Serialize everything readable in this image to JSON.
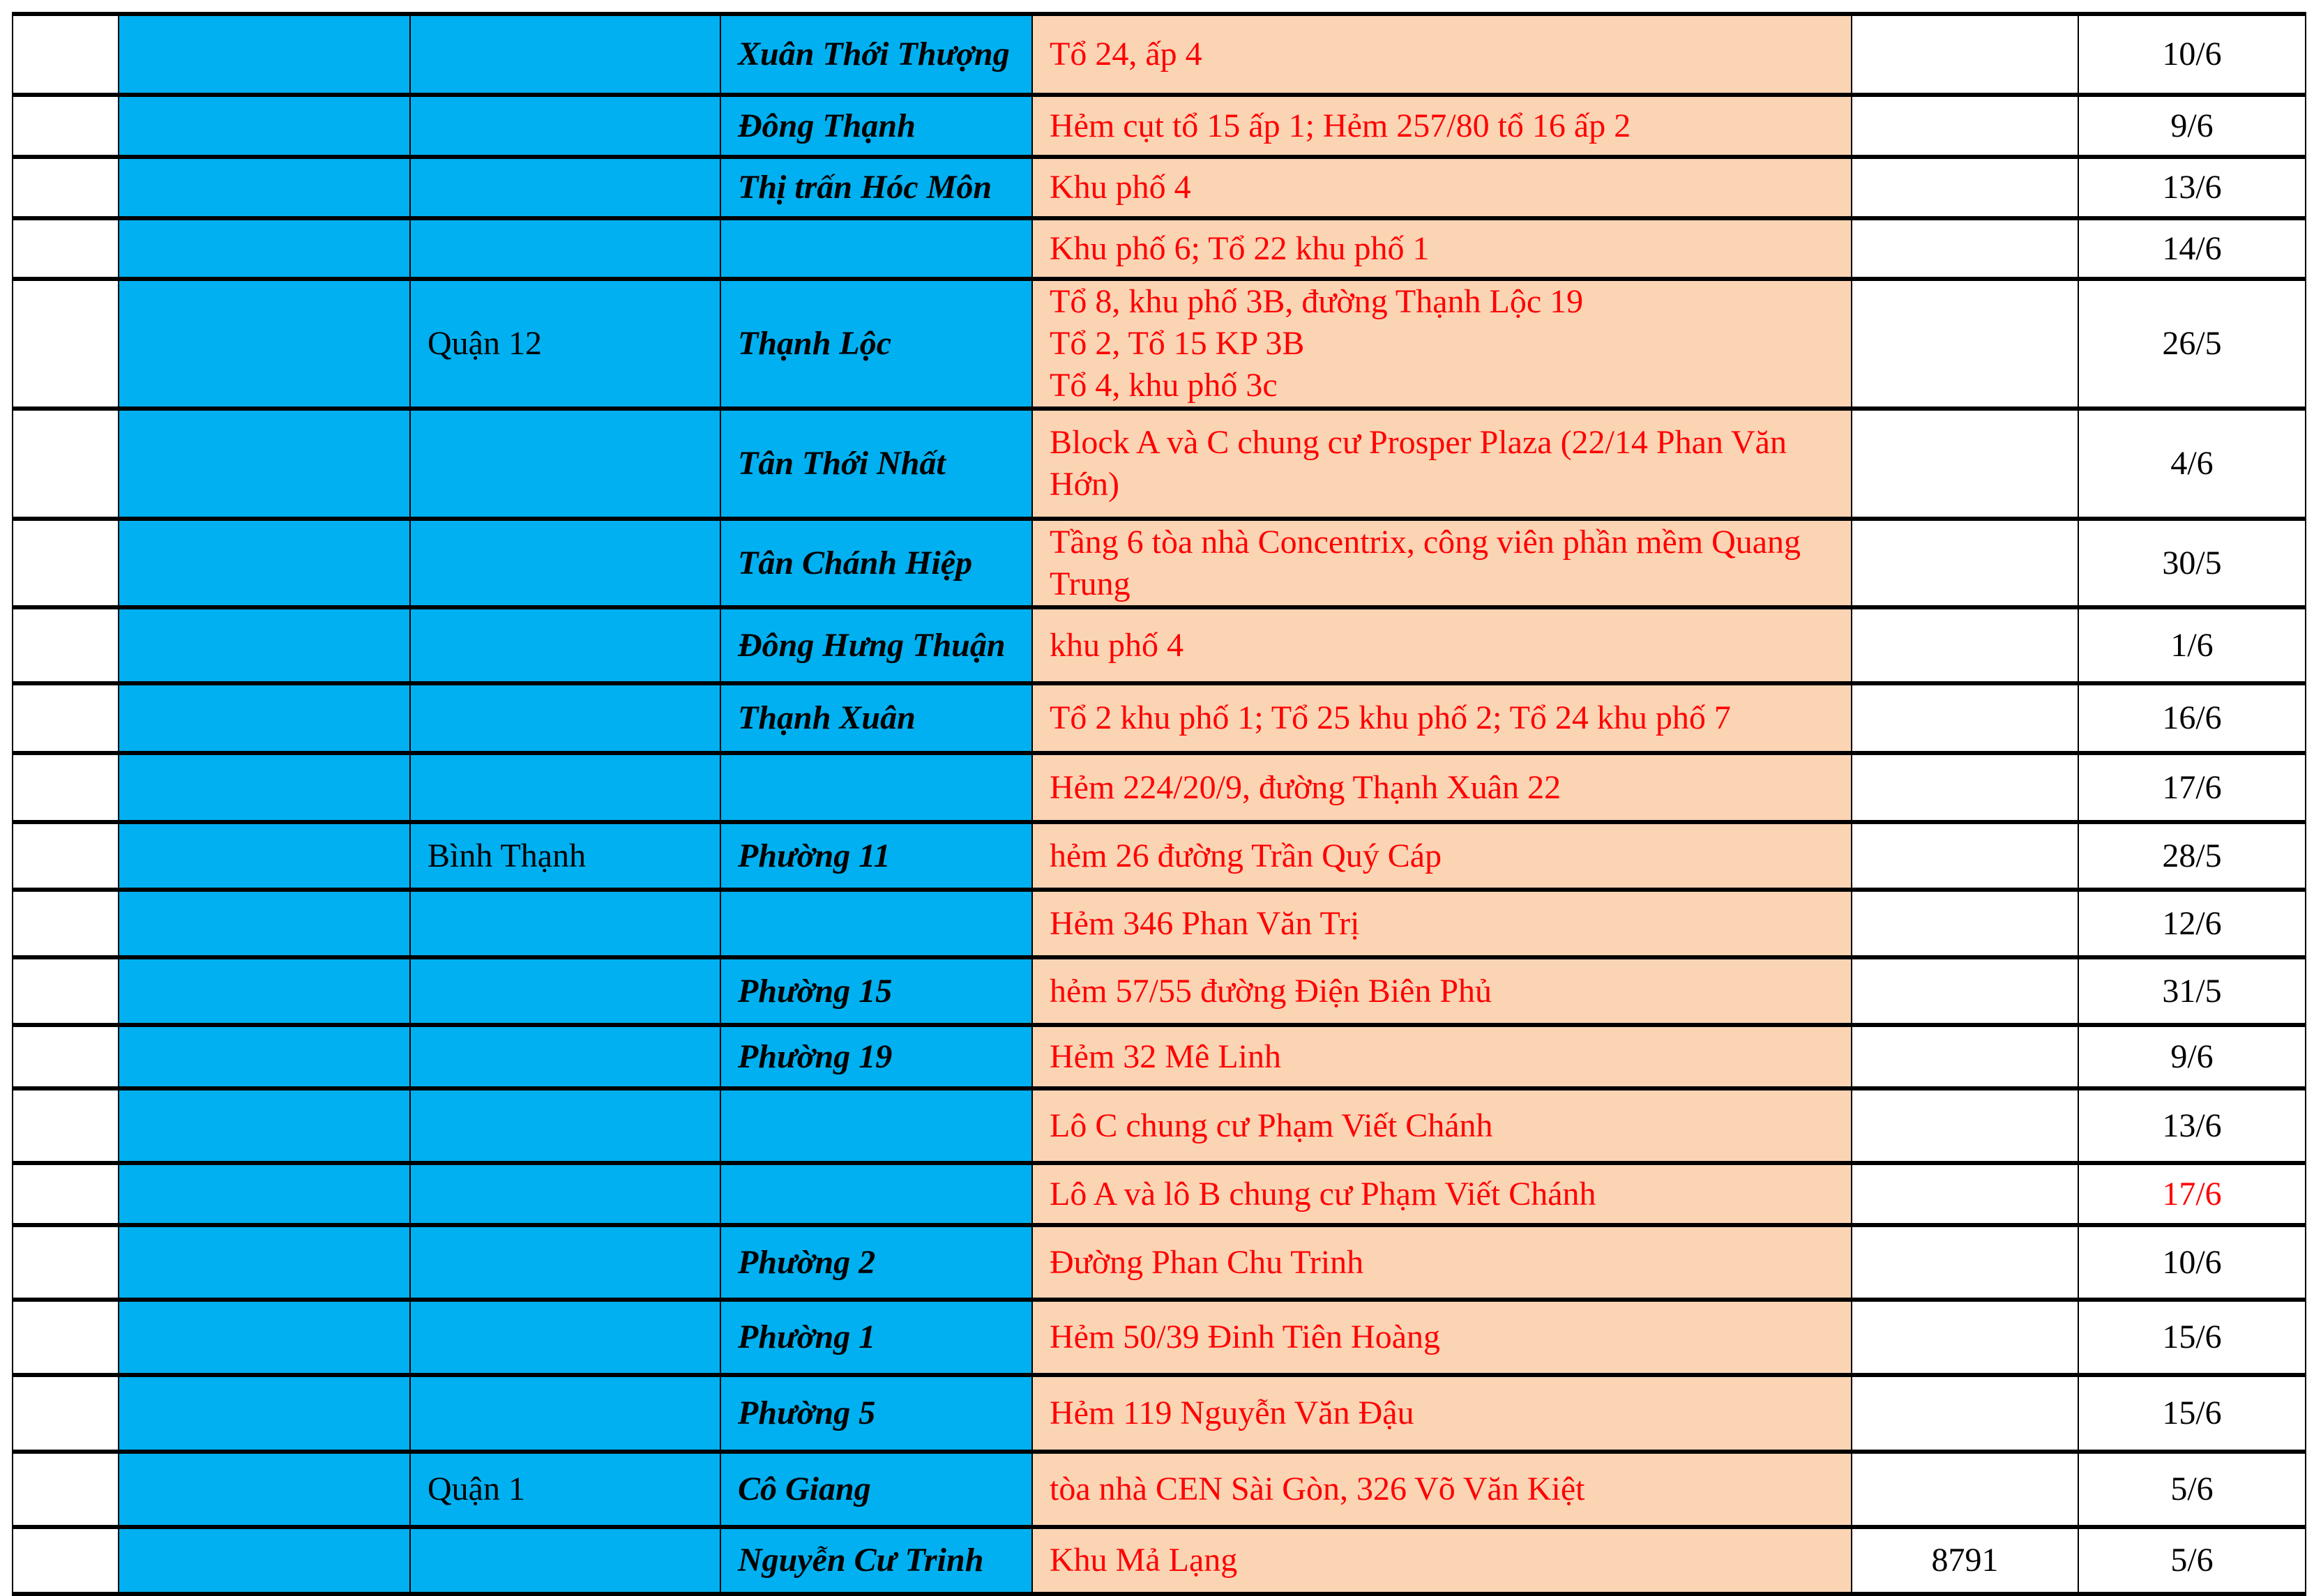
{
  "colors": {
    "blue_cell": "#00b0f0",
    "address_cell": "#fbd4b4",
    "address_text": "#ff0000",
    "highlight_date": "#ff0000"
  },
  "rows": [
    {
      "district": "",
      "ward": "Xuân Thới Thượng",
      "address": "Tổ 24, ấp 4",
      "count": "",
      "date": "10/6"
    },
    {
      "district": "",
      "ward": "Đông Thạnh",
      "address": "Hẻm cụt tổ 15 ấp 1; Hẻm 257/80 tổ 16 ấp 2",
      "count": "",
      "date": "9/6"
    },
    {
      "district": "",
      "ward": "Thị trấn Hóc Môn",
      "address": "Khu phố 4",
      "count": "",
      "date": "13/6"
    },
    {
      "district": "",
      "ward": "",
      "address": "Khu phố 6; Tổ 22 khu phố 1",
      "count": "",
      "date": "14/6"
    },
    {
      "district": "Quận 12",
      "ward": "Thạnh Lộc",
      "address": "Tổ 8, khu phố 3B, đường Thạnh Lộc 19\nTổ 2, Tổ 15 KP 3B\nTổ 4, khu phố 3c",
      "count": "",
      "date": "26/5"
    },
    {
      "district": "",
      "ward": "Tân Thới Nhất",
      "address": "Block A và C chung cư Prosper Plaza (22/14 Phan Văn Hớn)",
      "count": "",
      "date": "4/6"
    },
    {
      "district": "",
      "ward": "Tân Chánh Hiệp",
      "address": "Tầng 6 tòa nhà Concentrix, công viên phần mềm Quang Trung",
      "count": "",
      "date": "30/5"
    },
    {
      "district": "",
      "ward": "Đông Hưng Thuận",
      "address": "khu phố 4",
      "count": "",
      "date": "1/6"
    },
    {
      "district": "",
      "ward": "Thạnh Xuân",
      "address": "Tổ 2 khu phố 1; Tổ 25 khu phố 2; Tổ 24 khu phố 7",
      "count": "",
      "date": "16/6"
    },
    {
      "district": "",
      "ward": "",
      "address": "Hẻm 224/20/9, đường Thạnh Xuân 22",
      "count": "",
      "date": "17/6"
    },
    {
      "district": "Bình Thạnh",
      "ward": "Phường 11",
      "address": "hẻm 26 đường Trần Quý Cáp",
      "count": "",
      "date": "28/5"
    },
    {
      "district": "",
      "ward": "",
      "address": "Hẻm 346 Phan Văn Trị",
      "count": "",
      "date": "12/6"
    },
    {
      "district": "",
      "ward": "Phường 15",
      "address": "hẻm 57/55 đường Điện Biên Phủ",
      "count": "",
      "date": "31/5"
    },
    {
      "district": "",
      "ward": "Phường 19",
      "address": "Hẻm 32 Mê Linh",
      "count": "",
      "date": "9/6"
    },
    {
      "district": "",
      "ward": "",
      "address": "Lô C chung cư Phạm Viết Chánh",
      "count": "",
      "date": "13/6"
    },
    {
      "district": "",
      "ward": "",
      "address": "Lô A và lô B chung cư Phạm Viết Chánh",
      "count": "",
      "date": "17/6",
      "date_highlight": true
    },
    {
      "district": "",
      "ward": "Phường 2",
      "address": "Đường Phan Chu Trinh",
      "count": "",
      "date": "10/6"
    },
    {
      "district": "",
      "ward": "Phường 1",
      "address": "Hẻm 50/39 Đinh Tiên Hoàng",
      "count": "",
      "date": "15/6"
    },
    {
      "district": "",
      "ward": "Phường 5",
      "address": "Hẻm 119 Nguyễn Văn Đậu",
      "count": "",
      "date": "15/6"
    },
    {
      "district": "Quận 1",
      "ward": "Cô Giang",
      "address": "tòa nhà CEN Sài Gòn, 326 Võ Văn Kiệt",
      "count": "",
      "date": "5/6"
    },
    {
      "district": "",
      "ward": "Nguyễn Cư Trinh",
      "address": "Khu Mả Lạng",
      "count": "8791",
      "date": "5/6"
    }
  ]
}
